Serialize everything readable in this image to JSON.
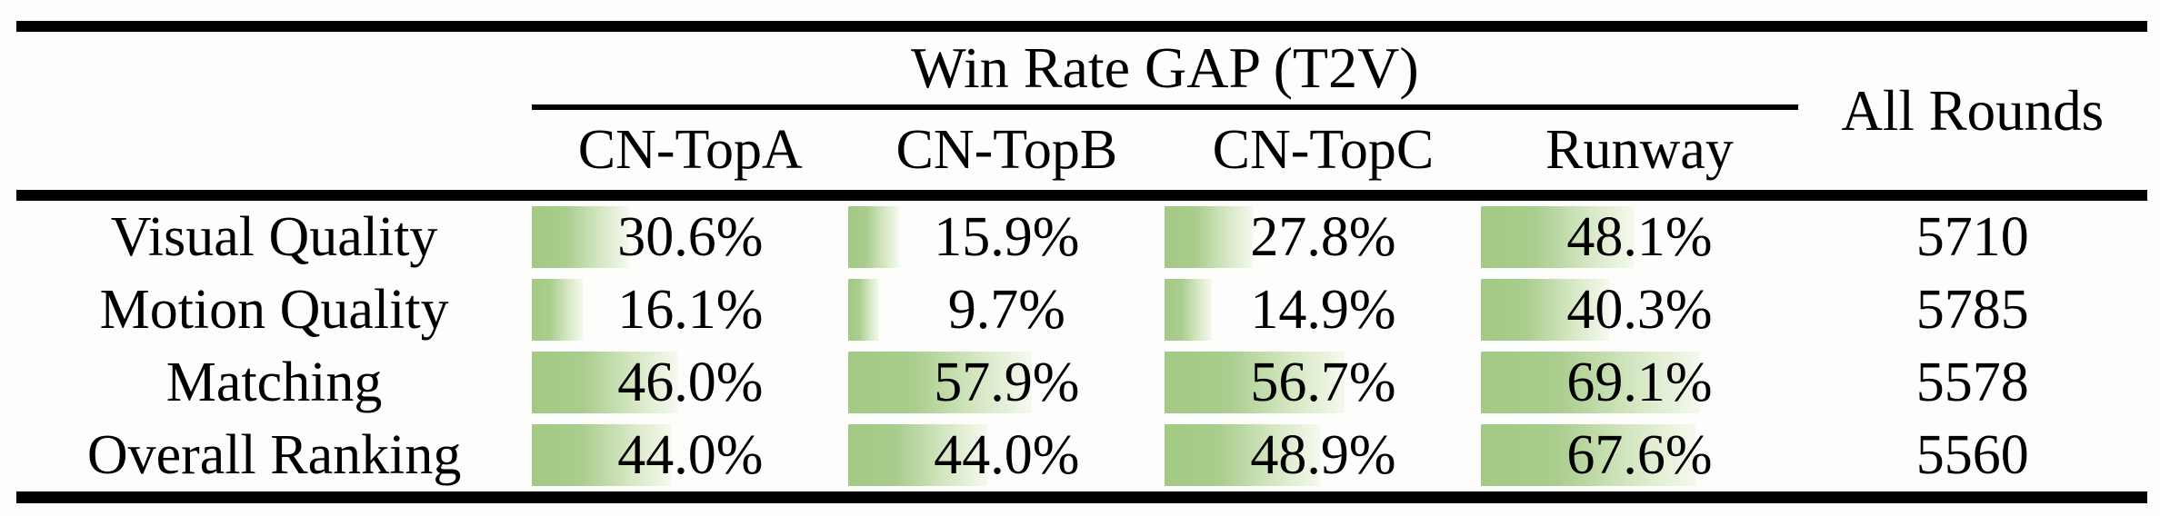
{
  "table": {
    "group_header": "Win Rate GAP (T2V)",
    "all_rounds_header": "All Rounds",
    "columns": [
      "CN-TopA",
      "CN-TopB",
      "CN-TopC",
      "Runway"
    ],
    "rows": [
      {
        "label": "Visual Quality",
        "cells": [
          {
            "display": "30.6%",
            "value": 30.6
          },
          {
            "display": "15.9%",
            "value": 15.9
          },
          {
            "display": "27.8%",
            "value": 27.8
          },
          {
            "display": "48.1%",
            "value": 48.1
          }
        ],
        "all_rounds": "5710"
      },
      {
        "label": "Motion Quality",
        "cells": [
          {
            "display": "16.1%",
            "value": 16.1
          },
          {
            "display": "9.7%",
            "value": 9.7
          },
          {
            "display": "14.9%",
            "value": 14.9
          },
          {
            "display": "40.3%",
            "value": 40.3
          }
        ],
        "all_rounds": "5785"
      },
      {
        "label": "Matching",
        "cells": [
          {
            "display": "46.0%",
            "value": 46.0
          },
          {
            "display": "57.9%",
            "value": 57.9
          },
          {
            "display": "56.7%",
            "value": 56.7
          },
          {
            "display": "69.1%",
            "value": 69.1
          }
        ],
        "all_rounds": "5578"
      },
      {
        "label": "Overall Ranking",
        "cells": [
          {
            "display": "44.0%",
            "value": 44.0
          },
          {
            "display": "44.0%",
            "value": 44.0
          },
          {
            "display": "48.9%",
            "value": 48.9
          },
          {
            "display": "67.6%",
            "value": 67.6
          }
        ],
        "all_rounds": "5560"
      }
    ],
    "colors": {
      "bar_green": "#a3c985",
      "bar_fade": "#f4f9ee",
      "rule": "#000000",
      "background": "#fdfdfc"
    }
  },
  "chart_data": {
    "type": "table",
    "title": "Win Rate GAP (T2V)",
    "columns": [
      "CN-TopA",
      "CN-TopB",
      "CN-TopC",
      "Runway",
      "All Rounds"
    ],
    "row_labels": [
      "Visual Quality",
      "Motion Quality",
      "Matching",
      "Overall Ranking"
    ],
    "series": [
      {
        "name": "Visual Quality",
        "win_rate_gap_pct": [
          30.6,
          15.9,
          27.8,
          48.1
        ],
        "all_rounds": 5710
      },
      {
        "name": "Motion Quality",
        "win_rate_gap_pct": [
          16.1,
          9.7,
          14.9,
          40.3
        ],
        "all_rounds": 5785
      },
      {
        "name": "Matching",
        "win_rate_gap_pct": [
          46.0,
          57.9,
          56.7,
          69.1
        ],
        "all_rounds": 5578
      },
      {
        "name": "Overall Ranking",
        "win_rate_gap_pct": [
          44.0,
          44.0,
          48.9,
          67.6
        ],
        "all_rounds": 5560
      }
    ],
    "layout_hints": "in-cell green gradient data bars, bar width proportional to percentage of cell width; booktabs-style horizontal rules"
  }
}
